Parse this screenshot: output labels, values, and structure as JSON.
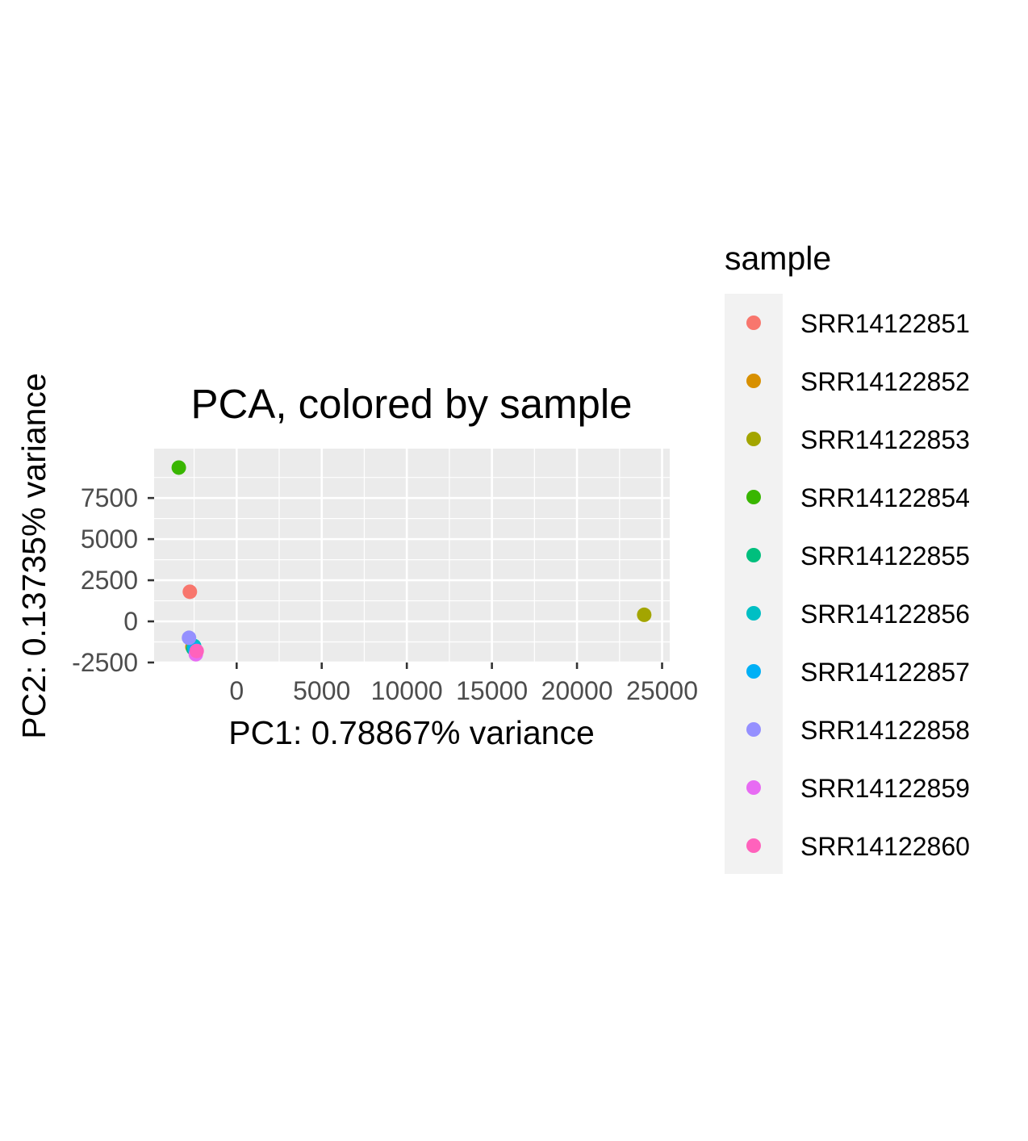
{
  "chart_data": {
    "type": "scatter",
    "title": "PCA, colored by sample",
    "xlabel": "PC1: 0.78867% variance",
    "ylabel": "PC2: 0.13735% variance",
    "xlim": [
      -4850,
      25450
    ],
    "ylim": [
      -2500,
      10500
    ],
    "x_ticks": [
      0,
      5000,
      10000,
      15000,
      20000,
      25000
    ],
    "x_tick_labels": [
      "0",
      "5000",
      "10000",
      "15000",
      "20000",
      "25000"
    ],
    "y_ticks": [
      -2500,
      0,
      2500,
      5000,
      7500
    ],
    "y_tick_labels": [
      "-2500",
      "0",
      "2500",
      "5000",
      "7500"
    ],
    "grid": true,
    "legend": {
      "title": "sample",
      "placement": "right"
    },
    "series": [
      {
        "name": "SRR14122851",
        "color": "#F8766D",
        "x": -2750,
        "y": 1800
      },
      {
        "name": "SRR14122852",
        "color": "#D89000",
        "x": -2600,
        "y": -1550
      },
      {
        "name": "SRR14122853",
        "color": "#A3A500",
        "x": 23950,
        "y": 400
      },
      {
        "name": "SRR14122854",
        "color": "#39B600",
        "x": -3400,
        "y": 9350
      },
      {
        "name": "SRR14122855",
        "color": "#00BF7D",
        "x": -2550,
        "y": -1650
      },
      {
        "name": "SRR14122856",
        "color": "#00BFC4",
        "x": -2500,
        "y": -1500
      },
      {
        "name": "SRR14122857",
        "color": "#00B0F6",
        "x": -2450,
        "y": -1700
      },
      {
        "name": "SRR14122858",
        "color": "#9590FF",
        "x": -2800,
        "y": -1000
      },
      {
        "name": "SRR14122859",
        "color": "#E76BF3",
        "x": -2400,
        "y": -2000
      },
      {
        "name": "SRR14122860",
        "color": "#FF62BC",
        "x": -2350,
        "y": -1800
      }
    ]
  }
}
